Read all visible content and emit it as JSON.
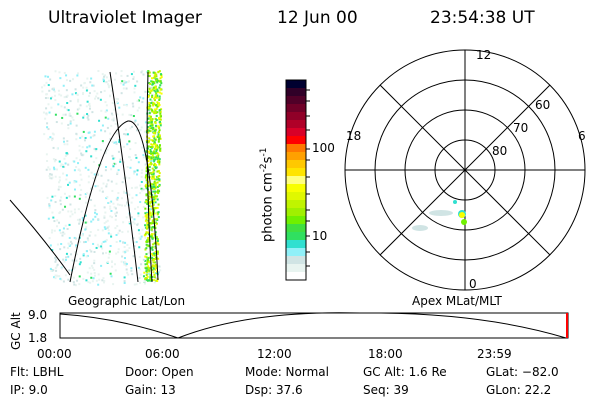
{
  "header": {
    "instrument": "Ultraviolet Imager",
    "date": "12 Jun 00",
    "time": "23:54:38 UT"
  },
  "colorbar": {
    "label": "photon cm",
    "label_sup1": "-2",
    "label_mid": "s",
    "label_sup2": "-1",
    "ticks": [
      "100",
      "10"
    ],
    "scale": "log",
    "colors": [
      "#000030",
      "#300028",
      "#500028",
      "#700028",
      "#900028",
      "#b00028",
      "#d80028",
      "#ff0000",
      "#ff7800",
      "#ffa000",
      "#ffc800",
      "#ffe400",
      "#ffff80",
      "#f8ff00",
      "#e0f800",
      "#c0f400",
      "#a0f000",
      "#70f000",
      "#40e040",
      "#30e060",
      "#30e0d0",
      "#90f0f8",
      "#d0e4e4",
      "#e8f4f0",
      "#ffffff"
    ]
  },
  "left_panel": {
    "label": "Geographic Lat/Lon"
  },
  "polar_plot": {
    "label": "Apex MLat/MLT",
    "mlt_labels": [
      "12",
      "18",
      "6",
      "0"
    ],
    "lat_labels": [
      "60",
      "70",
      "80"
    ]
  },
  "altitude_plot": {
    "ylabel": "GC Alt",
    "yticks": [
      "9.0",
      "1.8"
    ],
    "xticks": [
      "00:00",
      "06:00",
      "12:00",
      "18:00",
      "23:59"
    ],
    "current_marker_color": "#ff0000"
  },
  "info": {
    "flt": "Flt: LBHL",
    "ip": "IP:  9.0",
    "door": "Door: Open",
    "gain": "Gain: 13",
    "mode": "Mode: Normal",
    "dsp": "Dsp:   37.6",
    "gcalt": "GC Alt: 1.6 Re",
    "seq": "Seq: 39",
    "glat": "GLat: −82.0",
    "glon": "GLon:  22.2"
  }
}
